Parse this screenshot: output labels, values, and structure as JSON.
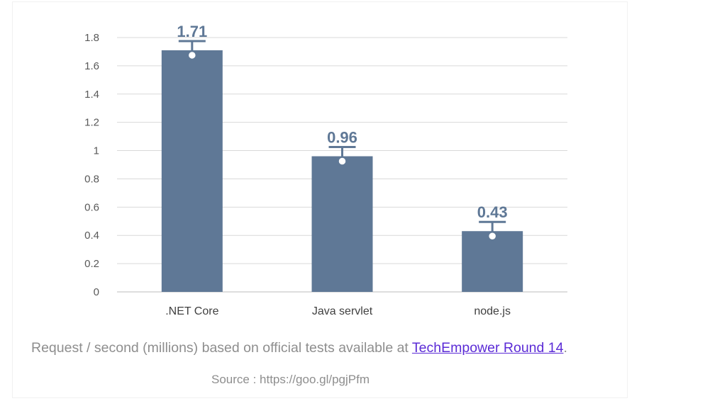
{
  "chart_data": {
    "type": "bar",
    "categories": [
      ".NET Core",
      "Java servlet",
      "node.js"
    ],
    "values": [
      1.71,
      0.96,
      0.43
    ],
    "data_labels": [
      "1.71",
      "0.96",
      "0.43"
    ],
    "y_ticks": [
      "0",
      "0.2",
      "0.4",
      "0.6",
      "0.8",
      "1",
      "1.2",
      "1.4",
      "1.6",
      "1.8"
    ],
    "ylim": [
      0,
      1.8
    ],
    "grid": true,
    "bar_color": "#5f7896",
    "label_color": "#5f7896"
  },
  "caption": {
    "prefix": "Request / second (millions) based on official tests available at ",
    "link_text": "TechEmpower Round 14",
    "suffix": "."
  },
  "source": "Source : https://goo.gl/pgjPfm"
}
